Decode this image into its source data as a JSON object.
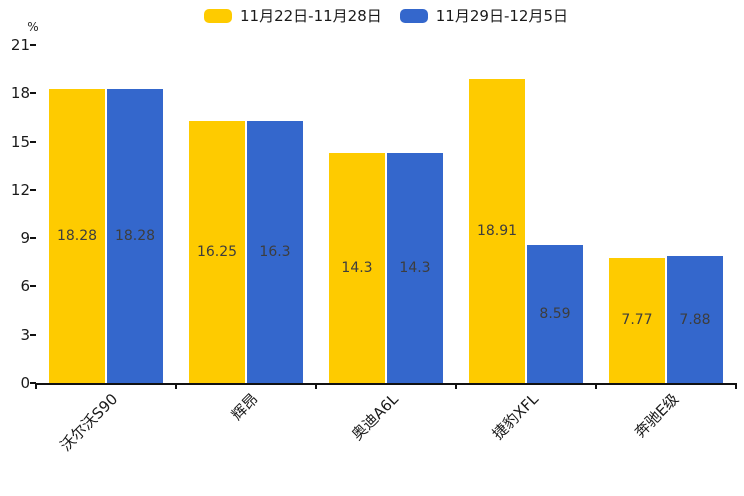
{
  "chart_data": {
    "type": "bar",
    "title": "",
    "unit_label": "%",
    "categories": [
      "沃尔沃S90",
      "辉昂",
      "奥迪A6L",
      "捷豹XFL",
      "奔驰E级"
    ],
    "series": [
      {
        "name": "11月22日-11月28日",
        "color": "#FECB00",
        "values": [
          18.28,
          16.25,
          14.3,
          18.91,
          7.77
        ]
      },
      {
        "name": "11月29日-12月5日",
        "color": "#3467CC",
        "values": [
          18.28,
          16.3,
          14.3,
          8.59,
          7.88
        ]
      }
    ],
    "ylim": [
      0,
      21
    ],
    "yticks": [
      0,
      3,
      6,
      9,
      12,
      15,
      18,
      21
    ],
    "grid": false,
    "legend_position": "top-center",
    "value_labels": "inside-center",
    "value_label_color": "#3d3d3d",
    "axis_color": "#111111"
  }
}
